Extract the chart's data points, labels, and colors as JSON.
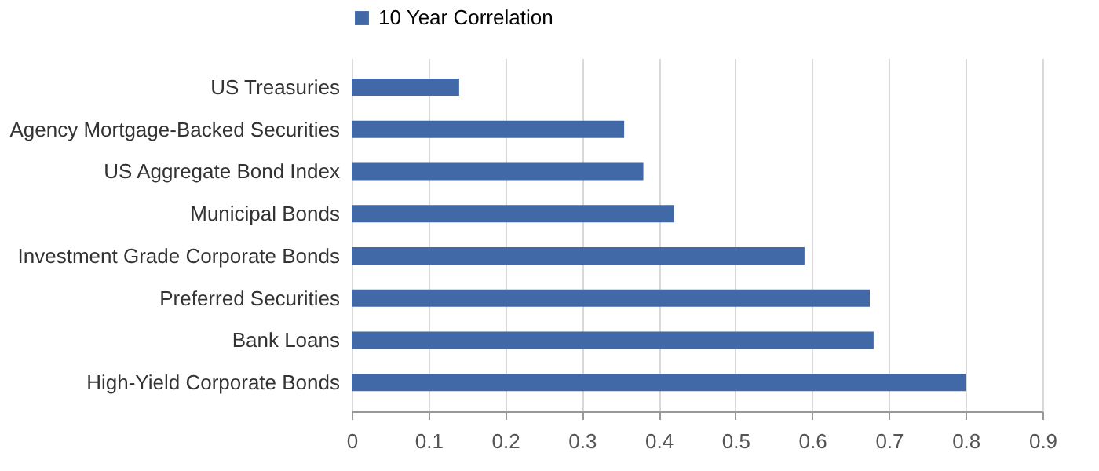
{
  "chart_data": {
    "type": "bar",
    "orientation": "horizontal",
    "categories": [
      "US Treasuries",
      "Agency Mortgage-Backed Securities",
      "US Aggregate Bond Index",
      "Municipal Bonds",
      "Investment Grade Corporate Bonds",
      "Preferred Securities",
      "Bank Loans",
      "High-Yield Corporate Bonds"
    ],
    "series": [
      {
        "name": "10 Year Correlation",
        "color": "#4169a8",
        "values": [
          0.14,
          0.355,
          0.38,
          0.42,
          0.59,
          0.675,
          0.68,
          0.8
        ]
      }
    ],
    "xlim": [
      0,
      0.9
    ],
    "xticks": [
      0,
      0.1,
      0.2,
      0.3,
      0.4,
      0.5,
      0.6,
      0.7,
      0.8,
      0.9
    ],
    "grid": "x",
    "legend": "top"
  }
}
